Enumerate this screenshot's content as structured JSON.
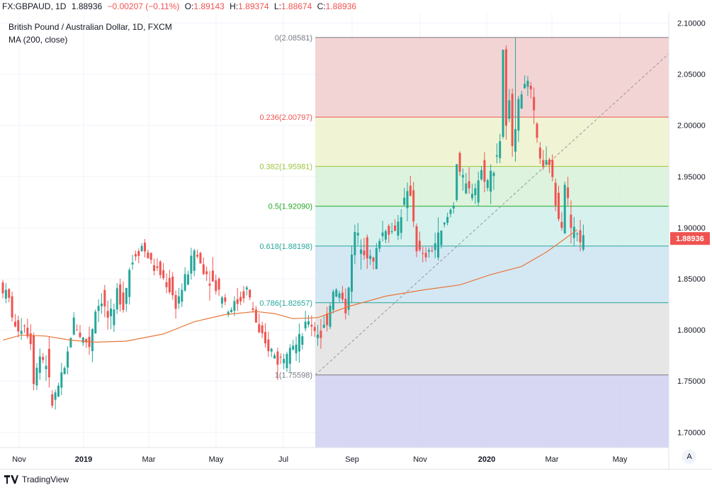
{
  "header": {
    "symbol": "FX:GBPAUD, 1D",
    "last": "1.88936",
    "change": "−0.00207 (−0.11%)",
    "open_label": "O:",
    "open": "1.89143",
    "high_label": "H:",
    "high": "1.89374",
    "low_label": "L:",
    "low": "1.88674",
    "close_label": "C:",
    "close": "1.88936"
  },
  "chart_title": "British Pound / Australian Dollar, 1D, FXCM",
  "indicator_title": "MA (200, close)",
  "branding": "TradingView",
  "auto_button": "A",
  "colors": {
    "up": "#26a69a",
    "down": "#ef5350",
    "ma": "#e8763a",
    "grid": "#f0f3fa",
    "axis_text": "#131722",
    "price_tag": "#ef5350"
  },
  "chart_data": {
    "type": "candlestick",
    "title": "British Pound / Australian Dollar, 1D, FXCM",
    "ylim": [
      1.685,
      2.11
    ],
    "y_ticks": [
      "2.10000",
      "2.05000",
      "2.00000",
      "1.95000",
      "1.90000",
      "1.85000",
      "1.80000",
      "1.75000",
      "1.70000"
    ],
    "x_ticks": [
      {
        "label": "Nov",
        "bold": false
      },
      {
        "label": "2019",
        "bold": true
      },
      {
        "label": "Mar",
        "bold": false
      },
      {
        "label": "May",
        "bold": false
      },
      {
        "label": "Jul",
        "bold": false
      },
      {
        "label": "Sep",
        "bold": false
      },
      {
        "label": "Nov",
        "bold": false
      },
      {
        "label": "2020",
        "bold": true
      },
      {
        "label": "Mar",
        "bold": false
      },
      {
        "label": "May",
        "bold": false
      }
    ],
    "last_price": "1.88936",
    "grid": true,
    "series": [
      {
        "name": "MA (200, close)",
        "type": "line",
        "values": [
          [
            0,
            1.79
          ],
          [
            6,
            1.795
          ],
          [
            14,
            1.794
          ],
          [
            22,
            1.79
          ],
          [
            30,
            1.788
          ],
          [
            40,
            1.789
          ],
          [
            52,
            1.796
          ],
          [
            62,
            1.808
          ],
          [
            72,
            1.815
          ],
          [
            82,
            1.818
          ],
          [
            88,
            1.816
          ],
          [
            94,
            1.811
          ],
          [
            102,
            1.812
          ],
          [
            112,
            1.823
          ],
          [
            124,
            1.833
          ],
          [
            136,
            1.839
          ],
          [
            148,
            1.844
          ],
          [
            158,
            1.854
          ],
          [
            168,
            1.862
          ],
          [
            176,
            1.876
          ],
          [
            182,
            1.889
          ],
          [
            186,
            1.898
          ]
        ]
      }
    ],
    "candles_path": [
      [
        0,
        1.845
      ],
      [
        3,
        1.83
      ],
      [
        5,
        1.8
      ],
      [
        8,
        1.805
      ],
      [
        10,
        1.79
      ],
      [
        11,
        1.752
      ],
      [
        13,
        1.775
      ],
      [
        15,
        1.768
      ],
      [
        17,
        1.728
      ],
      [
        19,
        1.745
      ],
      [
        21,
        1.76
      ],
      [
        23,
        1.795
      ],
      [
        24,
        1.81
      ],
      [
        26,
        1.795
      ],
      [
        29,
        1.785
      ],
      [
        31,
        1.82
      ],
      [
        33,
        1.83
      ],
      [
        35,
        1.812
      ],
      [
        37,
        1.815
      ],
      [
        38,
        1.838
      ],
      [
        40,
        1.825
      ],
      [
        42,
        1.86
      ],
      [
        44,
        1.875
      ],
      [
        46,
        1.882
      ],
      [
        48,
        1.872
      ],
      [
        50,
        1.86
      ],
      [
        52,
        1.855
      ],
      [
        55,
        1.84
      ],
      [
        57,
        1.825
      ],
      [
        59,
        1.84
      ],
      [
        61,
        1.858
      ],
      [
        63,
        1.878
      ],
      [
        65,
        1.865
      ],
      [
        67,
        1.855
      ],
      [
        70,
        1.842
      ],
      [
        72,
        1.835
      ],
      [
        74,
        1.82
      ],
      [
        76,
        1.825
      ],
      [
        78,
        1.83
      ],
      [
        80,
        1.84
      ],
      [
        82,
        1.82
      ],
      [
        84,
        1.795
      ],
      [
        86,
        1.785
      ],
      [
        88,
        1.78
      ],
      [
        90,
        1.77
      ],
      [
        92,
        1.775
      ],
      [
        94,
        1.79
      ],
      [
        96,
        1.785
      ],
      [
        98,
        1.795
      ],
      [
        100,
        1.81
      ],
      [
        102,
        1.8
      ],
      [
        104,
        1.795
      ],
      [
        106,
        1.81
      ],
      [
        108,
        1.84
      ],
      [
        110,
        1.835
      ],
      [
        112,
        1.82
      ],
      [
        113,
        1.845
      ],
      [
        115,
        1.895
      ],
      [
        117,
        1.885
      ],
      [
        119,
        1.875
      ],
      [
        121,
        1.865
      ],
      [
        123,
        1.89
      ],
      [
        125,
        1.9
      ],
      [
        127,
        1.895
      ],
      [
        129,
        1.905
      ],
      [
        131,
        1.925
      ],
      [
        133,
        1.935
      ],
      [
        135,
        1.88
      ],
      [
        137,
        1.87
      ],
      [
        139,
        1.875
      ],
      [
        141,
        1.885
      ],
      [
        143,
        1.895
      ],
      [
        145,
        1.91
      ],
      [
        147,
        1.925
      ],
      [
        148,
        1.965
      ],
      [
        150,
        1.945
      ],
      [
        152,
        1.935
      ],
      [
        154,
        1.94
      ],
      [
        156,
        1.955
      ],
      [
        158,
        1.945
      ],
      [
        160,
        1.96
      ],
      [
        162,
        1.985
      ],
      [
        163,
        2.075
      ],
      [
        164,
        1.995
      ],
      [
        165,
        2.02
      ],
      [
        166,
        1.985
      ],
      [
        168,
        2.02
      ],
      [
        170,
        2.045
      ],
      [
        172,
        2.03
      ],
      [
        174,
        1.985
      ],
      [
        176,
        1.955
      ],
      [
        178,
        1.965
      ],
      [
        180,
        1.925
      ],
      [
        182,
        1.905
      ],
      [
        183,
        1.945
      ],
      [
        184,
        1.925
      ],
      [
        185,
        1.9
      ],
      [
        187,
        1.894
      ],
      [
        188,
        1.889
      ]
    ],
    "fibonacci": [
      {
        "label": "0(2.08581)",
        "value": 2.08581,
        "color": "#787b86",
        "fill": "#f2cfcf"
      },
      {
        "label": "0.236(2.00797)",
        "value": 2.00797,
        "color": "#ef5350",
        "fill": "#eef3cf"
      },
      {
        "label": "0.382(1.95981)",
        "value": 1.95981,
        "color": "#9bc53d",
        "fill": "#d9f2d9"
      },
      {
        "label": "0.5(1.92090)",
        "value": 1.9209,
        "color": "#26a626",
        "fill": "#d3f1ec"
      },
      {
        "label": "0.618(1.88198)",
        "value": 1.88198,
        "color": "#26a69a",
        "fill": "#cfe6f2"
      },
      {
        "label": "0.786(1.82657)",
        "value": 1.82657,
        "color": "#26a69a",
        "fill": "#e3e3e3"
      },
      {
        "label": "1(1.75598)",
        "value": 1.75598,
        "color": "#787b86",
        "fill": "#d3d3f2"
      }
    ],
    "legend": "top-left"
  }
}
